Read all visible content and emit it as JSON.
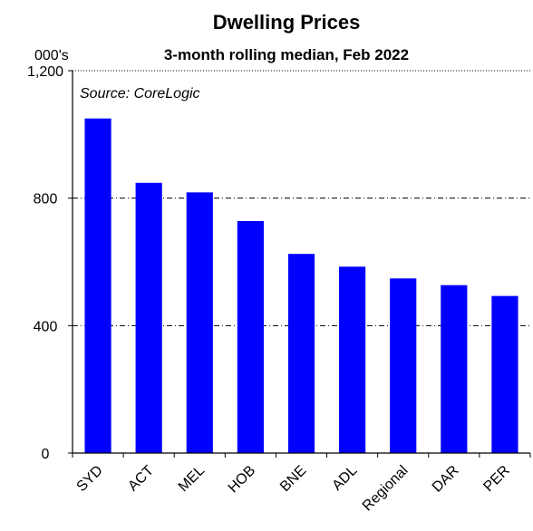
{
  "chart_data": {
    "type": "bar",
    "title": "Dwelling Prices",
    "subtitle": "3-month rolling median, Feb 2022",
    "y_unit_label": "000's",
    "annotation": "Source: CoreLogic",
    "categories": [
      "SYD",
      "ACT",
      "MEL",
      "HOB",
      "BNE",
      "ADL",
      "Regional",
      "DAR",
      "PER"
    ],
    "values": [
      1050,
      848,
      818,
      728,
      625,
      585,
      548,
      527,
      493
    ],
    "ylim": [
      0,
      1200
    ],
    "y_ticks": [
      0,
      400,
      800,
      1200
    ],
    "y_tick_labels": [
      "0",
      "400",
      "800",
      "1,200"
    ],
    "xlabel": "",
    "ylabel": "",
    "grid": true,
    "gridlines": [
      400,
      800
    ],
    "bar_color": "#0000ff"
  }
}
